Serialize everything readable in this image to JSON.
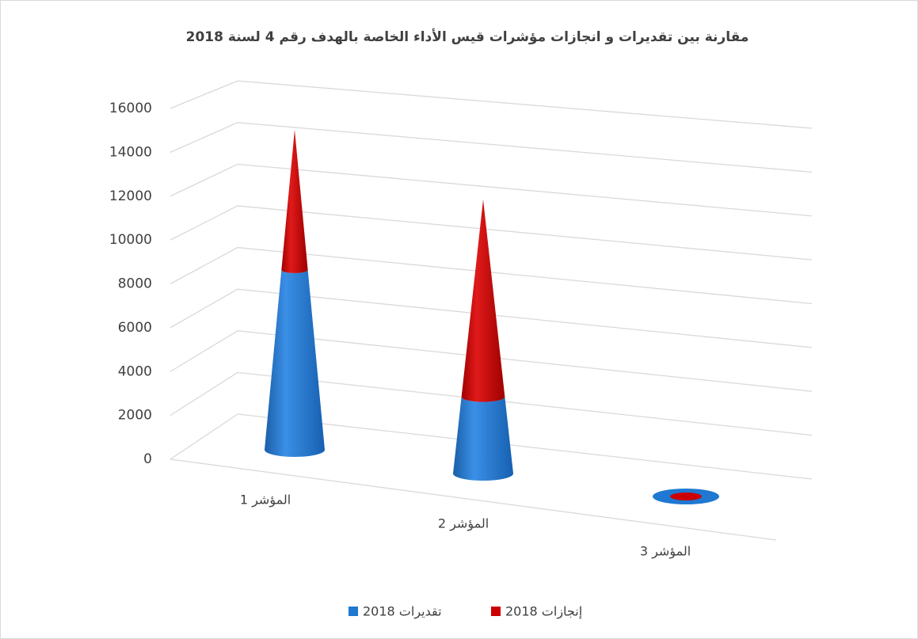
{
  "chart_data": {
    "type": "cone3d",
    "title": "مقارنة بين تقديرات و انجازات مؤشرات قيس الأداء الخاصة بالهدف رقم 4  لسنة 2018",
    "categories": [
      "المؤشر 1",
      "المؤشر 2",
      "المؤشر 3"
    ],
    "series": [
      {
        "name": "تقديرات 2018",
        "color": "#1f78d1",
        "values": [
          8200,
          3500,
          0
        ]
      },
      {
        "name": "إنجازات 2018",
        "color": "#cc0000",
        "values": [
          6400,
          9000,
          0
        ]
      }
    ],
    "stacked": true,
    "ylim": [
      0,
      16000
    ],
    "yticks": [
      0,
      2000,
      4000,
      6000,
      8000,
      10000,
      12000,
      14000,
      16000
    ],
    "grid": true,
    "legend": "bottom"
  }
}
